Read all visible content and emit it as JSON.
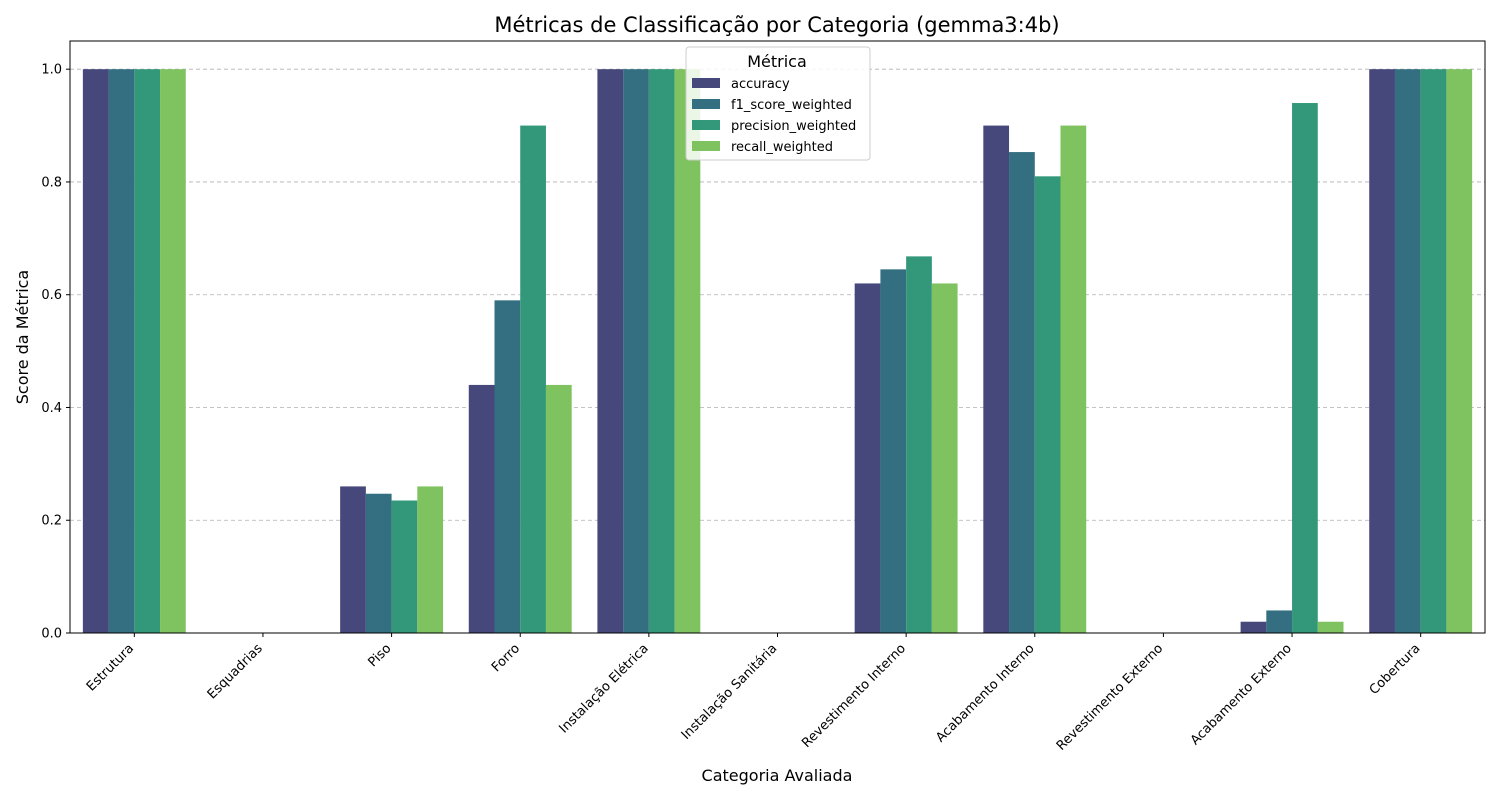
{
  "chart_data": {
    "type": "bar",
    "title": "Métricas de Classificação por Categoria (gemma3:4b)",
    "xlabel": "Categoria Avaliada",
    "ylabel": "Score da Métrica",
    "ylim": [
      0,
      1.05
    ],
    "yticks": [
      "0.0",
      "0.2",
      "0.4",
      "0.6",
      "0.8",
      "1.0"
    ],
    "grid": "y-dashed",
    "legend": {
      "title": "Métrica",
      "position": "top-center"
    },
    "categories": [
      "Estrutura",
      "Esquadrias",
      "Piso",
      "Forro",
      "Instalação Elétrica",
      "Instalação Sanitária",
      "Revestimento Interno",
      "Acabamento Interno",
      "Revestimento Externo",
      "Acabamento Externo",
      "Cobertura"
    ],
    "series": [
      {
        "name": "accuracy",
        "color": "#46477a",
        "values": [
          1.0,
          0.0,
          0.26,
          0.44,
          1.0,
          0.0,
          0.62,
          0.9,
          0.0,
          0.02,
          1.0
        ]
      },
      {
        "name": "f1_score_weighted",
        "color": "#336f80",
        "values": [
          1.0,
          0.0,
          0.247,
          0.59,
          1.0,
          0.0,
          0.645,
          0.853,
          0.0,
          0.04,
          1.0
        ]
      },
      {
        "name": "precision_weighted",
        "color": "#33987a",
        "values": [
          1.0,
          0.0,
          0.235,
          0.9,
          1.0,
          0.0,
          0.668,
          0.81,
          0.0,
          0.94,
          1.0
        ]
      },
      {
        "name": "recall_weighted",
        "color": "#7fc360",
        "values": [
          1.0,
          0.0,
          0.26,
          0.44,
          1.0,
          0.0,
          0.62,
          0.9,
          0.0,
          0.02,
          1.0
        ]
      }
    ]
  }
}
